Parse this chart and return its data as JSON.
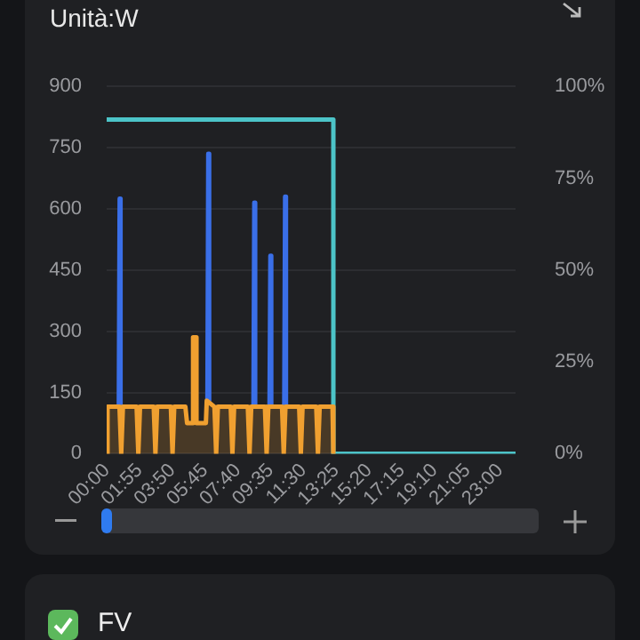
{
  "chart_data": {
    "type": "line",
    "title": "Unità:W",
    "annotations": [
      "FV"
    ],
    "xlim": [
      0,
      23.9
    ],
    "xticks": [
      {
        "value": 0,
        "label": "00:00"
      },
      {
        "value": 1.9167,
        "label": "01:55"
      },
      {
        "value": 3.8333,
        "label": "03:50"
      },
      {
        "value": 5.75,
        "label": "05:45"
      },
      {
        "value": 7.6667,
        "label": "07:40"
      },
      {
        "value": 9.5833,
        "label": "09:35"
      },
      {
        "value": 11.5,
        "label": "11:30"
      },
      {
        "value": 13.4167,
        "label": "13:25"
      },
      {
        "value": 15.3333,
        "label": "15:20"
      },
      {
        "value": 17.25,
        "label": "17:15"
      },
      {
        "value": 19.1667,
        "label": "19:10"
      },
      {
        "value": 21.0833,
        "label": "21:05"
      },
      {
        "value": 23,
        "label": "23:00"
      }
    ],
    "ylim": [
      0,
      900
    ],
    "yticks": [
      0,
      150,
      300,
      450,
      600,
      750,
      900
    ],
    "y2lim": [
      0,
      100
    ],
    "y2ticks": [
      {
        "value": 0,
        "label": "0%"
      },
      {
        "value": 25,
        "label": "25%"
      },
      {
        "value": 50,
        "label": "50%"
      },
      {
        "value": 75,
        "label": "75%"
      },
      {
        "value": 100,
        "label": "100%"
      }
    ],
    "grid": "y",
    "legend": false,
    "marker": "none",
    "series": [
      {
        "type": "area",
        "color": "#f0a030",
        "x": [
          0,
          0.05,
          0.75,
          0.85,
          0.95,
          1.75,
          1.85,
          1.95,
          2.75,
          2.85,
          2.95,
          3.75,
          3.85,
          3.95,
          4.6,
          4.7,
          5.0,
          5.05,
          5.2,
          5.25,
          5.8,
          5.85,
          6.3,
          6.4,
          6.5,
          7.25,
          7.35,
          7.45,
          8.25,
          8.35,
          8.45,
          9.25,
          9.35,
          9.45,
          10.25,
          10.35,
          10.45,
          11.25,
          11.35,
          11.45,
          12.25,
          12.35,
          12.45,
          13.2,
          13.25
        ],
        "values": [
          0,
          115,
          115,
          0,
          115,
          115,
          0,
          115,
          115,
          0,
          115,
          115,
          0,
          115,
          115,
          75,
          75,
          285,
          285,
          75,
          75,
          130,
          115,
          0,
          115,
          115,
          0,
          115,
          115,
          0,
          115,
          115,
          0,
          115,
          115,
          0,
          115,
          115,
          0,
          115,
          115,
          0,
          115,
          115,
          0
        ]
      },
      {
        "type": "line",
        "color": "#3a6fe8",
        "x": [
          0.71,
          0.76,
          0.81,
          0.82,
          5.89,
          5.94,
          5.99,
          6.0,
          8.58,
          8.63,
          8.68,
          8.69,
          9.52,
          9.57,
          9.62,
          9.63,
          10.38,
          10.43,
          10.48
        ],
        "values": [
          115,
          625,
          115,
          null,
          130,
          735,
          130,
          null,
          115,
          615,
          115,
          null,
          115,
          485,
          115,
          null,
          115,
          630,
          115
        ]
      },
      {
        "type": "step",
        "axis": "y2",
        "color": "#4cc4c8",
        "x": [
          0,
          13.25,
          23.9
        ],
        "values": [
          91,
          0,
          0
        ]
      }
    ]
  }
}
